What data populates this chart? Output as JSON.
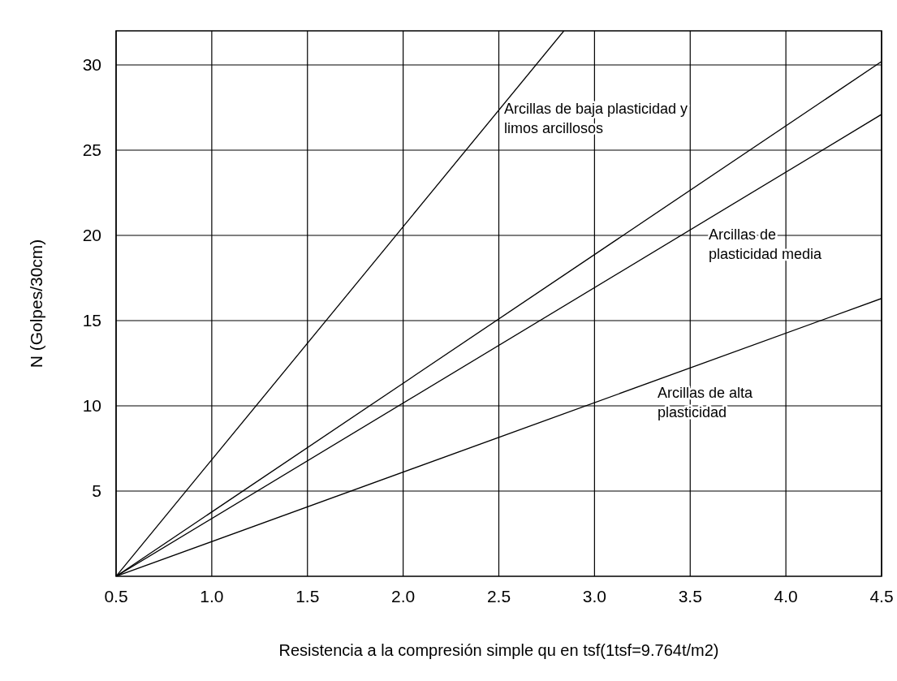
{
  "chart_data": {
    "type": "line",
    "xlabel": "Resistencia a la compresión simple qu en tsf(1tsf=9.764t/m2)",
    "ylabel": "N (Golpes/30cm)",
    "xlim": [
      0.5,
      4.5
    ],
    "ylim": [
      0,
      32
    ],
    "xticks": [
      {
        "value": 0.5,
        "label": "0.5"
      },
      {
        "value": 1,
        "label": "1.0"
      },
      {
        "value": 1.5,
        "label": "1.5"
      },
      {
        "value": 2,
        "label": "2.0"
      },
      {
        "value": 2.5,
        "label": "2.5"
      },
      {
        "value": 3,
        "label": "3.0"
      },
      {
        "value": 3.5,
        "label": "3.5"
      },
      {
        "value": 4,
        "label": "4.0"
      },
      {
        "value": 4.5,
        "label": "4.5"
      }
    ],
    "yticks": [
      5,
      10,
      15,
      20,
      25,
      30
    ],
    "grid": true,
    "marker": "none",
    "line_style": "solid",
    "series": [
      {
        "color": "#000000",
        "x": [
          0.5,
          2.84
        ],
        "values": [
          0,
          32
        ]
      },
      {
        "color": "#000000",
        "x": [
          0.5,
          4.5
        ],
        "values": [
          0,
          30.2
        ]
      },
      {
        "color": "#000000",
        "x": [
          0.5,
          4.5
        ],
        "values": [
          0,
          27.1
        ]
      },
      {
        "color": "#000000",
        "x": [
          0.5,
          4.5
        ],
        "values": [
          0,
          16.3
        ]
      }
    ],
    "annotations": [
      "Arcillas de baja plasticidad y\nlimos arcillosos",
      "Arcillas de\nplasticidad media",
      "Arcillas de alta\nplasticidad"
    ]
  }
}
